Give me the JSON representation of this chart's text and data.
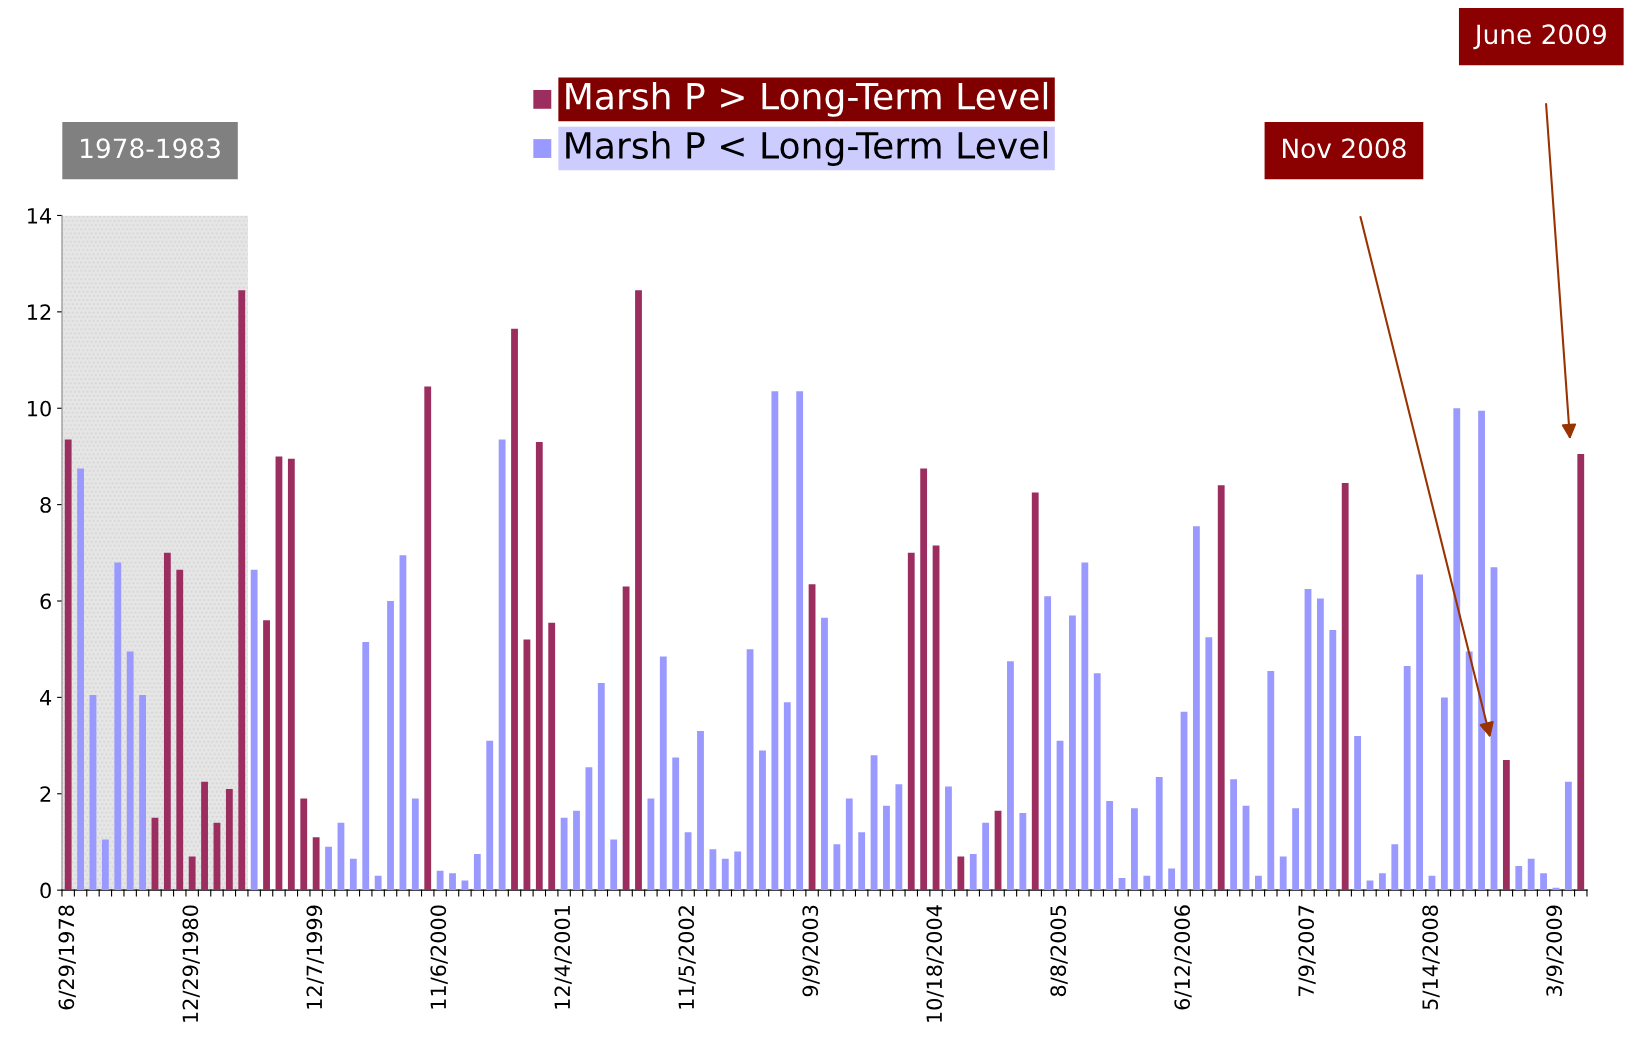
{
  "chart_data": {
    "type": "bar",
    "categories": [
      "6/29/1978",
      null,
      null,
      null,
      null,
      null,
      null,
      null,
      null,
      null,
      "12/29/1980",
      null,
      null,
      null,
      null,
      null,
      null,
      null,
      null,
      null,
      "12/7/1999",
      null,
      null,
      null,
      null,
      null,
      null,
      null,
      null,
      null,
      "11/6/2000",
      null,
      null,
      null,
      null,
      null,
      null,
      null,
      null,
      null,
      "12/4/2001",
      null,
      null,
      null,
      null,
      null,
      null,
      null,
      null,
      null,
      "11/5/2002",
      null,
      null,
      null,
      null,
      null,
      null,
      null,
      null,
      null,
      "9/9/2003",
      null,
      null,
      null,
      null,
      null,
      null,
      null,
      null,
      null,
      "10/18/2004",
      null,
      null,
      null,
      null,
      null,
      null,
      null,
      null,
      null,
      "8/8/2005",
      null,
      null,
      null,
      null,
      null,
      null,
      null,
      null,
      null,
      "6/12/2006",
      null,
      null,
      null,
      null,
      null,
      null,
      null,
      null,
      null,
      "7/9/2007",
      null,
      null,
      null,
      null,
      null,
      null,
      null,
      null,
      null,
      "5/14/2008",
      null,
      null,
      null,
      null,
      null,
      null,
      null,
      null,
      null,
      "3/9/2009",
      null,
      null
    ],
    "series": [
      {
        "name": "Marsh P > Long-Term Level",
        "color": "#9b2d5f",
        "values": [
          9.35,
          null,
          null,
          null,
          null,
          null,
          null,
          1.5,
          7.0,
          6.65,
          0.7,
          2.25,
          1.4,
          2.1,
          12.45,
          null,
          5.6,
          9.0,
          8.95,
          1.9,
          1.1,
          null,
          null,
          null,
          null,
          null,
          null,
          null,
          null,
          10.45,
          null,
          null,
          null,
          null,
          null,
          null,
          11.65,
          5.2,
          9.3,
          5.55,
          null,
          null,
          null,
          null,
          null,
          6.3,
          12.45,
          null,
          null,
          null,
          null,
          null,
          null,
          null,
          null,
          null,
          null,
          null,
          null,
          null,
          6.35,
          null,
          null,
          null,
          null,
          null,
          null,
          null,
          7.0,
          8.75,
          7.15,
          null,
          0.7,
          null,
          null,
          1.65,
          null,
          null,
          8.25,
          null,
          null,
          null,
          null,
          null,
          null,
          null,
          null,
          null,
          null,
          null,
          null,
          null,
          null,
          8.4,
          null,
          null,
          null,
          null,
          null,
          null,
          null,
          null,
          null,
          8.45,
          null,
          null,
          null,
          null,
          null,
          null,
          null,
          null,
          null,
          null,
          null,
          null,
          2.7,
          null,
          null,
          null,
          null,
          null,
          9.05
        ]
      },
      {
        "name": "Marsh P < Long-Term Level",
        "color": "#9999ff",
        "values": [
          null,
          8.75,
          4.05,
          1.05,
          6.8,
          4.95,
          4.05,
          null,
          null,
          null,
          null,
          null,
          null,
          null,
          null,
          6.65,
          null,
          null,
          null,
          null,
          null,
          0.9,
          1.4,
          0.65,
          5.15,
          0.3,
          6.0,
          6.95,
          1.9,
          null,
          0.4,
          0.35,
          0.2,
          0.75,
          3.1,
          9.35,
          null,
          null,
          null,
          null,
          1.5,
          1.65,
          2.55,
          4.3,
          1.05,
          null,
          null,
          1.9,
          4.85,
          2.75,
          1.2,
          3.3,
          0.85,
          0.65,
          0.8,
          5.0,
          2.9,
          10.35,
          3.9,
          10.35,
          null,
          5.65,
          0.95,
          1.9,
          1.2,
          2.8,
          1.75,
          2.2,
          null,
          null,
          null,
          2.15,
          null,
          0.75,
          1.4,
          null,
          4.75,
          1.6,
          null,
          6.1,
          3.1,
          5.7,
          6.8,
          4.5,
          1.85,
          0.25,
          1.7,
          0.3,
          2.35,
          0.45,
          3.7,
          7.55,
          5.25,
          null,
          2.3,
          1.75,
          0.3,
          4.55,
          0.7,
          1.7,
          6.25,
          6.05,
          5.4,
          null,
          3.2,
          0.2,
          0.35,
          0.95,
          4.65,
          6.55,
          0.3,
          4.0,
          10.0,
          4.95,
          9.95,
          6.7,
          null,
          0.5,
          0.65,
          0.35,
          0.05,
          2.25,
          null
        ]
      }
    ],
    "ylim": [
      0,
      14
    ],
    "yticks": [
      0,
      2,
      4,
      6,
      8,
      10,
      12,
      14
    ],
    "grid": false,
    "legend": "top",
    "annotations": [
      "1978-1983",
      "Nov 2008",
      "June 2009"
    ]
  }
}
